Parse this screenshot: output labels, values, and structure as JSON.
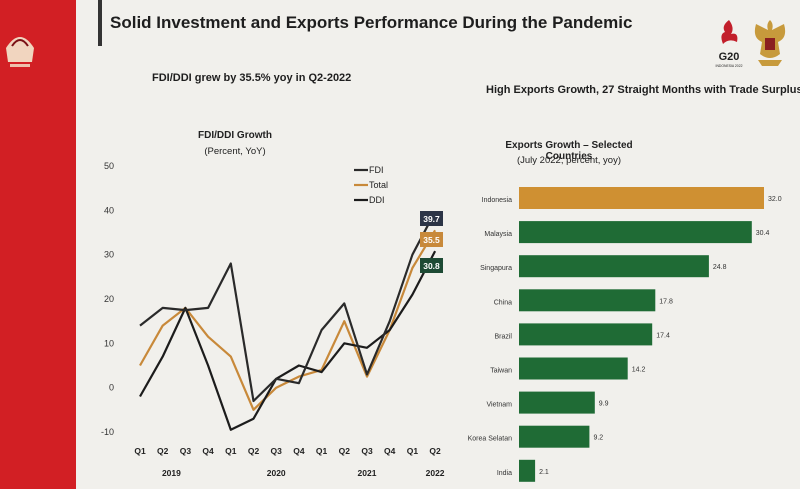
{
  "slide": {
    "title": "Solid Investment and Exports Performance During the Pandemic",
    "left_subtitle": "FDI/DDI grew by 35.5% yoy in Q2-2022",
    "right_subtitle": "High Exports Growth, 27 Straight Months with Trade Surplus",
    "g20_text": "G20",
    "g20_sub": "INDONESIA 2022"
  },
  "colors": {
    "fdi": "#2a2a2a",
    "total": "#c8893a",
    "ddi": "#1c1c1c",
    "bar_green": "#1f6b35",
    "bar_highlight": "#cf9032",
    "badge_fdi": "#2c3446",
    "badge_total": "#c8893a",
    "badge_ddi": "#1d4a34"
  },
  "chart_data": [
    {
      "type": "line",
      "title": "FDI/DDI Growth",
      "subtitle": "(Percent, YoY)",
      "x": [
        "Q1",
        "Q2",
        "Q3",
        "Q4",
        "Q1",
        "Q2",
        "Q3",
        "Q4",
        "Q1",
        "Q2",
        "Q3",
        "Q4",
        "Q1",
        "Q2"
      ],
      "year_labels": [
        {
          "label": "2019",
          "at": 2
        },
        {
          "label": "2020",
          "at": 6
        },
        {
          "label": "2021",
          "at": 10
        },
        {
          "label": "2022",
          "at": 13
        }
      ],
      "yticks": [
        50,
        40,
        30,
        20,
        10,
        0,
        -10
      ],
      "ylim": [
        -10,
        50
      ],
      "legend": [
        "FDI",
        "Total",
        "DDI"
      ],
      "legend_position": "top",
      "series": [
        {
          "name": "FDI",
          "values": [
            14,
            18,
            17.5,
            18,
            28,
            -3,
            2,
            1,
            13,
            19,
            3,
            15,
            30,
            39.7
          ]
        },
        {
          "name": "Total",
          "values": [
            5,
            14,
            18,
            11.5,
            7,
            -5,
            0,
            2.5,
            4,
            15,
            2.5,
            13,
            27,
            35.5
          ]
        },
        {
          "name": "DDI",
          "values": [
            -2,
            7,
            18,
            5,
            -9.5,
            -7,
            2,
            5,
            3.5,
            10,
            9,
            13,
            21,
            30.8
          ]
        }
      ],
      "end_labels": [
        "39.7",
        "35.5",
        "30.8"
      ]
    },
    {
      "type": "bar",
      "orientation": "horizontal",
      "title": "Exports Growth – Selected Countries",
      "subtitle": "(July 2022, percent, yoy)",
      "categories": [
        "Indonesia",
        "Malaysia",
        "Singapura",
        "China",
        "Brazil",
        "Taiwan",
        "Vietnam",
        "Korea Selatan",
        "India"
      ],
      "values": [
        32.0,
        30.4,
        24.8,
        17.8,
        17.4,
        14.2,
        9.9,
        9.2,
        2.1
      ],
      "value_labels": [
        "32.0",
        "30.4",
        "24.8",
        "17.8",
        "17.4",
        "14.2",
        "9.9",
        "9.2",
        "2.1"
      ],
      "highlight": "Indonesia",
      "xlim": [
        0,
        32
      ]
    }
  ]
}
